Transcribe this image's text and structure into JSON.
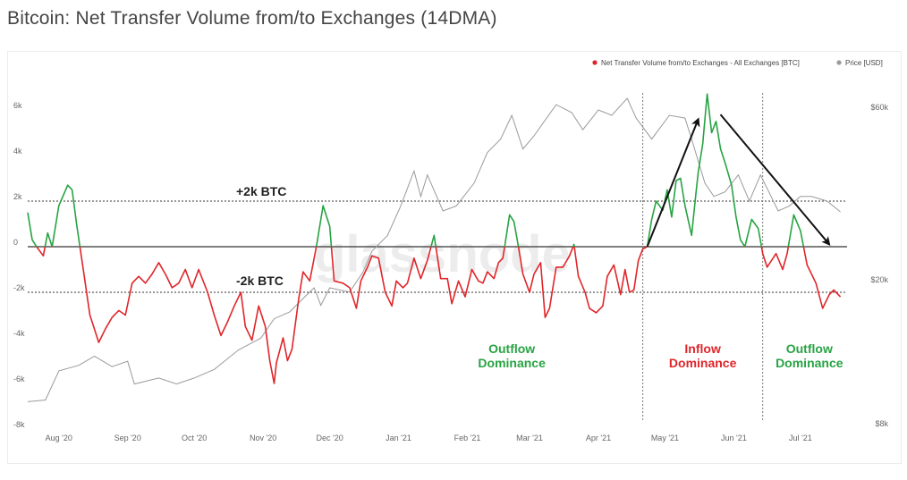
{
  "page": {
    "title": "Bitcoin: Net Transfer Volume from/to Exchanges (14DMA)"
  },
  "watermark": "glassnode",
  "legend": {
    "net": {
      "label": "Net Transfer Volume from/to Exchanges - All Exchanges [BTC]",
      "color": "#e0252a"
    },
    "price": {
      "label": "Price [USD]",
      "color": "#9a9a9a"
    }
  },
  "chart_data": {
    "type": "line",
    "title": "Bitcoin: Net Transfer Volume from/to Exchanges (14DMA)",
    "y_left": {
      "range": [
        -8000,
        7500
      ],
      "ticks": [
        6000,
        4000,
        2000,
        0,
        -2000,
        -4000,
        -6000,
        -8000
      ],
      "tick_labels": [
        "6k",
        "4k",
        "2k",
        "0",
        "-2k",
        "-4k",
        "-6k",
        "-8k"
      ]
    },
    "y_right": {
      "scale": "log",
      "range": [
        8000,
        75000
      ],
      "ticks": [
        60000,
        20000,
        8000
      ],
      "tick_labels": [
        "$60k",
        "$20k",
        "$8k"
      ]
    },
    "x_axis": {
      "range": [
        "2020-07-18",
        "2021-07-22"
      ],
      "ticks": [
        {
          "date": "2020-08-01",
          "label": "Aug '20"
        },
        {
          "date": "2020-09-01",
          "label": "Sep '20"
        },
        {
          "date": "2020-10-01",
          "label": "Oct '20"
        },
        {
          "date": "2020-11-01",
          "label": "Nov '20"
        },
        {
          "date": "2020-12-01",
          "label": "Dec '20"
        },
        {
          "date": "2021-01-01",
          "label": "Jan '21"
        },
        {
          "date": "2021-02-01",
          "label": "Feb '21"
        },
        {
          "date": "2021-03-01",
          "label": "Mar '21"
        },
        {
          "date": "2021-04-01",
          "label": "Apr '21"
        },
        {
          "date": "2021-05-01",
          "label": "May '21"
        },
        {
          "date": "2021-06-01",
          "label": "Jun '21"
        },
        {
          "date": "2021-07-01",
          "label": "Jul '21"
        }
      ]
    },
    "colors": {
      "positive": "#27a343",
      "negative": "#e0252a",
      "price": "#9a9a9a"
    },
    "series": [
      {
        "name": "Net Transfer Volume from/to Exchanges - All Exchanges [BTC]",
        "points": [
          [
            "2020-07-18",
            1500
          ],
          [
            "2020-07-20",
            300
          ],
          [
            "2020-07-22",
            0
          ],
          [
            "2020-07-25",
            -400
          ],
          [
            "2020-07-27",
            600
          ],
          [
            "2020-07-29",
            0
          ],
          [
            "2020-08-01",
            1800
          ],
          [
            "2020-08-05",
            2700
          ],
          [
            "2020-08-07",
            2500
          ],
          [
            "2020-08-09",
            1000
          ],
          [
            "2020-08-12",
            -1000
          ],
          [
            "2020-08-15",
            -3000
          ],
          [
            "2020-08-19",
            -4200
          ],
          [
            "2020-08-22",
            -3600
          ],
          [
            "2020-08-25",
            -3100
          ],
          [
            "2020-08-28",
            -2800
          ],
          [
            "2020-08-31",
            -3000
          ],
          [
            "2020-09-03",
            -1600
          ],
          [
            "2020-09-06",
            -1300
          ],
          [
            "2020-09-09",
            -1600
          ],
          [
            "2020-09-12",
            -1200
          ],
          [
            "2020-09-15",
            -700
          ],
          [
            "2020-09-18",
            -1200
          ],
          [
            "2020-09-21",
            -1800
          ],
          [
            "2020-09-24",
            -1600
          ],
          [
            "2020-09-27",
            -1000
          ],
          [
            "2020-09-30",
            -1800
          ],
          [
            "2020-10-03",
            -1000
          ],
          [
            "2020-10-07",
            -2000
          ],
          [
            "2020-10-10",
            -3000
          ],
          [
            "2020-10-13",
            -3900
          ],
          [
            "2020-10-16",
            -3300
          ],
          [
            "2020-10-19",
            -2600
          ],
          [
            "2020-10-22",
            -2000
          ],
          [
            "2020-10-24",
            -3500
          ],
          [
            "2020-10-27",
            -4100
          ],
          [
            "2020-10-30",
            -2600
          ],
          [
            "2020-11-02",
            -3500
          ],
          [
            "2020-11-04",
            -5000
          ],
          [
            "2020-11-06",
            -6000
          ],
          [
            "2020-11-07",
            -5100
          ],
          [
            "2020-11-10",
            -4000
          ],
          [
            "2020-11-12",
            -5000
          ],
          [
            "2020-11-14",
            -4500
          ],
          [
            "2020-11-17",
            -2300
          ],
          [
            "2020-11-19",
            -1100
          ],
          [
            "2020-11-22",
            -1500
          ],
          [
            "2020-11-25",
            0
          ],
          [
            "2020-11-28",
            1800
          ],
          [
            "2020-12-01",
            900
          ],
          [
            "2020-12-03",
            -1500
          ],
          [
            "2020-12-07",
            -1600
          ],
          [
            "2020-12-10",
            -1800
          ],
          [
            "2020-12-13",
            -2700
          ],
          [
            "2020-12-15",
            -1500
          ],
          [
            "2020-12-18",
            -900
          ],
          [
            "2020-12-20",
            -400
          ],
          [
            "2020-12-23",
            -500
          ],
          [
            "2020-12-26",
            -2000
          ],
          [
            "2020-12-29",
            -2600
          ],
          [
            "2020-12-31",
            -1500
          ],
          [
            "2021-01-03",
            -1800
          ],
          [
            "2021-01-05",
            -1600
          ],
          [
            "2021-01-08",
            -500
          ],
          [
            "2021-01-11",
            -1400
          ],
          [
            "2021-01-14",
            -600
          ],
          [
            "2021-01-17",
            500
          ],
          [
            "2021-01-20",
            -1400
          ],
          [
            "2021-01-23",
            -1400
          ],
          [
            "2021-01-25",
            -2500
          ],
          [
            "2021-01-28",
            -1500
          ],
          [
            "2021-01-31",
            -2200
          ],
          [
            "2021-02-03",
            -1000
          ],
          [
            "2021-02-06",
            -1500
          ],
          [
            "2021-02-08",
            -1600
          ],
          [
            "2021-02-10",
            -1100
          ],
          [
            "2021-02-13",
            -1400
          ],
          [
            "2021-02-15",
            -700
          ],
          [
            "2021-02-17",
            -500
          ],
          [
            "2021-02-20",
            1400
          ],
          [
            "2021-02-22",
            1100
          ],
          [
            "2021-02-24",
            0
          ],
          [
            "2021-02-26",
            -1200
          ],
          [
            "2021-03-01",
            -2000
          ],
          [
            "2021-03-03",
            -1200
          ],
          [
            "2021-03-06",
            -700
          ],
          [
            "2021-03-08",
            -3100
          ],
          [
            "2021-03-10",
            -2700
          ],
          [
            "2021-03-13",
            -900
          ],
          [
            "2021-03-16",
            -900
          ],
          [
            "2021-03-19",
            -400
          ],
          [
            "2021-03-21",
            100
          ],
          [
            "2021-03-23",
            -1300
          ],
          [
            "2021-03-26",
            -2000
          ],
          [
            "2021-03-28",
            -2700
          ],
          [
            "2021-03-31",
            -2900
          ],
          [
            "2021-04-03",
            -2600
          ],
          [
            "2021-04-05",
            -1300
          ],
          [
            "2021-04-08",
            -800
          ],
          [
            "2021-04-11",
            -2100
          ],
          [
            "2021-04-13",
            -1000
          ],
          [
            "2021-04-15",
            -2000
          ],
          [
            "2021-04-17",
            -1900
          ],
          [
            "2021-04-19",
            -600
          ],
          [
            "2021-04-21",
            -100
          ],
          [
            "2021-04-23",
            0
          ],
          [
            "2021-04-25",
            1200
          ],
          [
            "2021-04-27",
            2000
          ],
          [
            "2021-04-30",
            1600
          ],
          [
            "2021-05-02",
            2500
          ],
          [
            "2021-05-04",
            1300
          ],
          [
            "2021-05-06",
            2900
          ],
          [
            "2021-05-08",
            3000
          ],
          [
            "2021-05-10",
            1800
          ],
          [
            "2021-05-13",
            500
          ],
          [
            "2021-05-15",
            2400
          ],
          [
            "2021-05-16",
            3300
          ],
          [
            "2021-05-18",
            4500
          ],
          [
            "2021-05-20",
            6700
          ],
          [
            "2021-05-22",
            5000
          ],
          [
            "2021-05-24",
            5500
          ],
          [
            "2021-05-26",
            4300
          ],
          [
            "2021-05-28",
            3700
          ],
          [
            "2021-05-31",
            2700
          ],
          [
            "2021-06-02",
            1300
          ],
          [
            "2021-06-04",
            300
          ],
          [
            "2021-06-06",
            0
          ],
          [
            "2021-06-09",
            1200
          ],
          [
            "2021-06-12",
            800
          ],
          [
            "2021-06-14",
            -300
          ],
          [
            "2021-06-16",
            -900
          ],
          [
            "2021-06-20",
            -300
          ],
          [
            "2021-06-23",
            -1000
          ],
          [
            "2021-06-25",
            -300
          ],
          [
            "2021-06-28",
            1400
          ],
          [
            "2021-07-01",
            700
          ],
          [
            "2021-07-04",
            -800
          ],
          [
            "2021-07-08",
            -1600
          ],
          [
            "2021-07-11",
            -2700
          ],
          [
            "2021-07-14",
            -2100
          ],
          [
            "2021-07-16",
            -1900
          ],
          [
            "2021-07-19",
            -2200
          ]
        ]
      },
      {
        "name": "Price [USD]",
        "points": [
          [
            "2020-07-18",
            9200
          ],
          [
            "2020-07-26",
            9300
          ],
          [
            "2020-08-01",
            11200
          ],
          [
            "2020-08-10",
            11600
          ],
          [
            "2020-08-17",
            12300
          ],
          [
            "2020-08-25",
            11500
          ],
          [
            "2020-09-01",
            11900
          ],
          [
            "2020-09-04",
            10300
          ],
          [
            "2020-09-15",
            10700
          ],
          [
            "2020-09-23",
            10300
          ],
          [
            "2020-10-01",
            10700
          ],
          [
            "2020-10-10",
            11300
          ],
          [
            "2020-10-21",
            12800
          ],
          [
            "2020-10-31",
            13800
          ],
          [
            "2020-11-06",
            15600
          ],
          [
            "2020-11-13",
            16300
          ],
          [
            "2020-11-20",
            18000
          ],
          [
            "2020-11-24",
            19000
          ],
          [
            "2020-11-27",
            17000
          ],
          [
            "2020-12-01",
            19000
          ],
          [
            "2020-12-10",
            18500
          ],
          [
            "2020-12-16",
            21000
          ],
          [
            "2020-12-20",
            24000
          ],
          [
            "2020-12-27",
            26500
          ],
          [
            "2021-01-02",
            32000
          ],
          [
            "2021-01-08",
            40000
          ],
          [
            "2021-01-11",
            34000
          ],
          [
            "2021-01-14",
            39000
          ],
          [
            "2021-01-21",
            31000
          ],
          [
            "2021-01-27",
            32000
          ],
          [
            "2021-02-04",
            37000
          ],
          [
            "2021-02-10",
            45000
          ],
          [
            "2021-02-16",
            49000
          ],
          [
            "2021-02-21",
            57000
          ],
          [
            "2021-02-26",
            46000
          ],
          [
            "2021-03-03",
            50000
          ],
          [
            "2021-03-13",
            61000
          ],
          [
            "2021-03-20",
            58000
          ],
          [
            "2021-03-25",
            52000
          ],
          [
            "2021-04-01",
            59000
          ],
          [
            "2021-04-07",
            57000
          ],
          [
            "2021-04-14",
            63500
          ],
          [
            "2021-04-18",
            56000
          ],
          [
            "2021-04-25",
            49000
          ],
          [
            "2021-05-03",
            57000
          ],
          [
            "2021-05-10",
            56000
          ],
          [
            "2021-05-13",
            49000
          ],
          [
            "2021-05-19",
            37000
          ],
          [
            "2021-05-23",
            34000
          ],
          [
            "2021-05-28",
            35000
          ],
          [
            "2021-06-03",
            39000
          ],
          [
            "2021-06-08",
            33000
          ],
          [
            "2021-06-13",
            39000
          ],
          [
            "2021-06-21",
            31000
          ],
          [
            "2021-06-26",
            32000
          ],
          [
            "2021-07-01",
            34000
          ],
          [
            "2021-07-06",
            34000
          ],
          [
            "2021-07-13",
            33000
          ],
          [
            "2021-07-19",
            30800
          ]
        ]
      }
    ],
    "reference_lines": [
      {
        "value": 2000,
        "label": "+2k BTC"
      },
      {
        "value": -2000,
        "label": "-2k BTC"
      }
    ],
    "period_dividers": [
      "2021-04-21",
      "2021-06-14"
    ],
    "annotations": [
      {
        "text_lines": [
          "Outflow",
          "Dominance"
        ],
        "color": "#27a343",
        "anchor_date": "2021-02-21"
      },
      {
        "text_lines": [
          "Inflow",
          "Dominance"
        ],
        "color": "#e0252a",
        "anchor_date": "2021-05-18"
      },
      {
        "text_lines": [
          "Outflow",
          "Dominance"
        ],
        "color": "#27a343",
        "anchor_date": "2021-07-05"
      }
    ],
    "arrows": [
      {
        "from": [
          "2021-04-23",
          0
        ],
        "to": [
          "2021-05-16",
          5600
        ]
      },
      {
        "from": [
          "2021-05-26",
          5800
        ],
        "to": [
          "2021-07-14",
          100
        ]
      }
    ],
    "legend_position": "top-right"
  }
}
